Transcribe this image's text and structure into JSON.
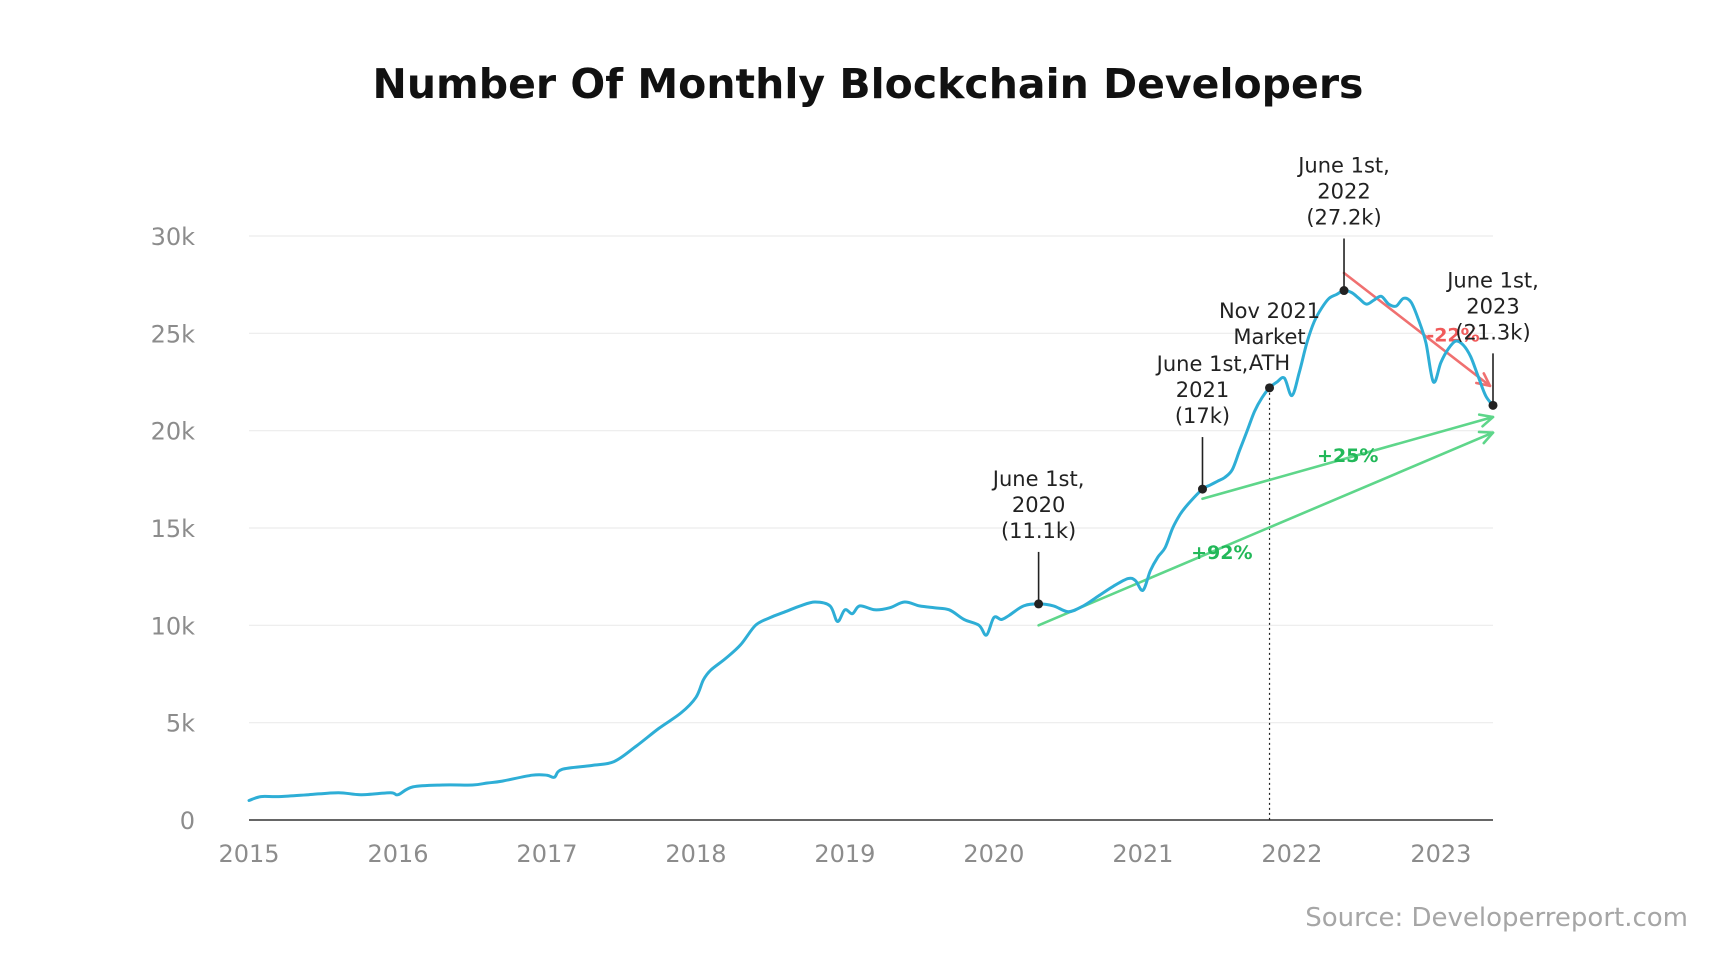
{
  "chart_data": {
    "type": "line",
    "title": "Number Of Monthly Blockchain Developers",
    "xlabel": "",
    "ylabel": "",
    "source": "Source: Developerreport.com",
    "x_ticks": [
      "2015",
      "2016",
      "2017",
      "2018",
      "2019",
      "2020",
      "2021",
      "2022",
      "2023"
    ],
    "y_ticks": [
      "0",
      "5k",
      "10k",
      "15k",
      "20k",
      "25k",
      "30k"
    ],
    "y_tick_values": [
      0,
      5000,
      10000,
      15000,
      20000,
      25000,
      30000
    ],
    "xlim": [
      2015.0,
      2023.35
    ],
    "ylim": [
      0,
      30000
    ],
    "grid": true,
    "line_color": "#2eaed6",
    "series": [
      {
        "x": [
          2015.0,
          2015.08,
          2015.2,
          2015.4,
          2015.6,
          2015.75,
          2015.95,
          2016.0,
          2016.1,
          2016.3,
          2016.5,
          2016.6,
          2016.7,
          2016.9,
          2017.0,
          2017.05,
          2017.1,
          2017.3,
          2017.45,
          2017.6,
          2017.75,
          2017.9,
          2018.0,
          2018.05,
          2018.1,
          2018.2,
          2018.3,
          2018.4,
          2018.5,
          2018.6,
          2018.7,
          2018.8,
          2018.9,
          2018.95,
          2019.0,
          2019.05,
          2019.1,
          2019.2,
          2019.3,
          2019.4,
          2019.5,
          2019.6,
          2019.7,
          2019.8,
          2019.9,
          2019.95,
          2020.0,
          2020.05,
          2020.1,
          2020.2,
          2020.3,
          2020.4,
          2020.5,
          2020.6,
          2020.7,
          2020.8,
          2020.9,
          2020.95,
          2021.0,
          2021.05,
          2021.1,
          2021.15,
          2021.2,
          2021.25,
          2021.3,
          2021.4,
          2021.45,
          2021.5,
          2021.55,
          2021.6,
          2021.65,
          2021.7,
          2021.75,
          2021.8,
          2021.85,
          2021.9,
          2021.95,
          2022.0,
          2022.05,
          2022.1,
          2022.15,
          2022.2,
          2022.25,
          2022.3,
          2022.35,
          2022.4,
          2022.45,
          2022.5,
          2022.55,
          2022.6,
          2022.65,
          2022.7,
          2022.75,
          2022.8,
          2022.85,
          2022.9,
          2022.95,
          2023.0,
          2023.05,
          2023.1,
          2023.15,
          2023.2,
          2023.25,
          2023.3,
          2023.35
        ],
        "values": [
          1000,
          1200,
          1200,
          1300,
          1400,
          1300,
          1400,
          1300,
          1700,
          1800,
          1800,
          1900,
          2000,
          2300,
          2300,
          2200,
          2600,
          2800,
          3000,
          3800,
          4700,
          5500,
          6300,
          7200,
          7700,
          8300,
          9000,
          10000,
          10400,
          10700,
          11000,
          11200,
          11000,
          10200,
          10800,
          10600,
          11000,
          10800,
          10900,
          11200,
          11000,
          10900,
          10800,
          10300,
          10000,
          9500,
          10400,
          10300,
          10500,
          11000,
          11100,
          11000,
          10700,
          11000,
          11500,
          12000,
          12400,
          12300,
          11800,
          12800,
          13500,
          14000,
          15000,
          15700,
          16200,
          17000,
          17200,
          17400,
          17600,
          18000,
          19000,
          20000,
          21000,
          21700,
          22200,
          22500,
          22700,
          21800,
          23000,
          24500,
          25600,
          26300,
          26800,
          27000,
          27200,
          27100,
          26800,
          26500,
          26700,
          26900,
          26500,
          26400,
          26800,
          26600,
          25700,
          24500,
          22500,
          23500,
          24200,
          24600,
          24400,
          23800,
          22800,
          21800,
          21300
        ]
      }
    ],
    "annotations": [
      {
        "lines": [
          "June 1st,",
          "2020",
          "(11.1k)"
        ],
        "x": 2020.3,
        "y": 11100
      },
      {
        "lines": [
          "June 1st,",
          "2021",
          "(17k)"
        ],
        "x": 2021.4,
        "y": 17000
      },
      {
        "lines": [
          "Nov 2021",
          "Market",
          "ATH"
        ],
        "x": 2021.85,
        "y": 22200
      },
      {
        "lines": [
          "June 1st,",
          "2022",
          "(27.2k)"
        ],
        "x": 2022.35,
        "y": 27200
      },
      {
        "lines": [
          "June 1st,",
          "2023",
          "(21.3k)"
        ],
        "x": 2023.35,
        "y": 21300
      }
    ],
    "trend_arrows": [
      {
        "label": "-22%",
        "color": "#f07070",
        "from": [
          2022.35,
          28100
        ],
        "to": [
          2023.33,
          22300
        ]
      },
      {
        "label": "+25%",
        "color": "#5ed68a",
        "from": [
          2021.4,
          16500
        ],
        "to": [
          2023.35,
          20700
        ]
      },
      {
        "label": "+92%",
        "color": "#5ed68a",
        "from": [
          2020.3,
          10000
        ],
        "to": [
          2023.35,
          19900
        ]
      }
    ],
    "pct_label_colors": {
      "negative": "#f05a5a",
      "positive": "#22b859"
    }
  }
}
